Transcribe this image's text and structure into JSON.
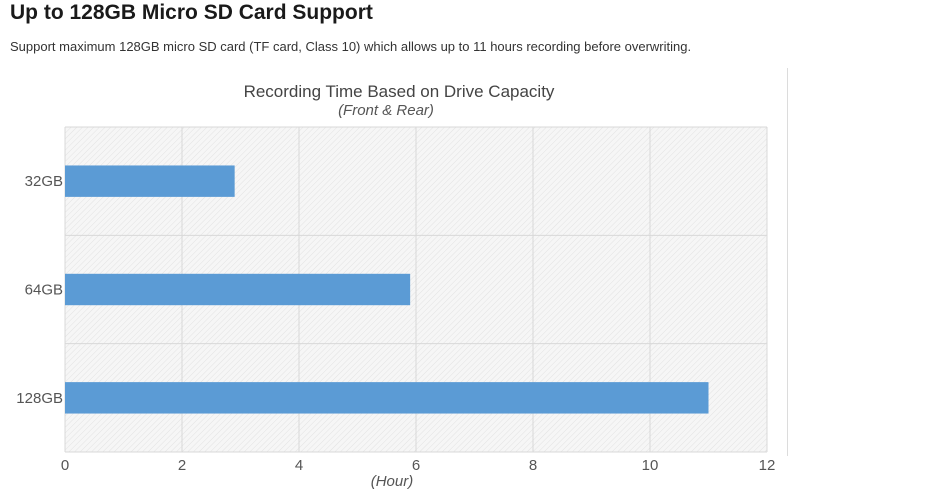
{
  "heading": {
    "title": "Up to 128GB Micro SD Card Support",
    "description": "Support maximum 128GB micro SD card (TF card, Class 10) which allows up to 11 hours recording before overwriting."
  },
  "chart_data": {
    "type": "bar",
    "orientation": "horizontal",
    "title": "Recording Time Based on Drive Capacity",
    "subtitle": "(Front & Rear)",
    "xlabel": "(Hour)",
    "ylabel": "",
    "categories": [
      "32GB",
      "64GB",
      "128GB"
    ],
    "values": [
      2.9,
      5.9,
      11
    ],
    "xlim": [
      0,
      12
    ],
    "xticks": [
      0,
      2,
      4,
      6,
      8,
      10,
      12
    ],
    "grid": true,
    "colors": {
      "bar": "#5b9bd5",
      "plot_background": "#f5f5f5",
      "grid": "#d8d8d8"
    }
  }
}
